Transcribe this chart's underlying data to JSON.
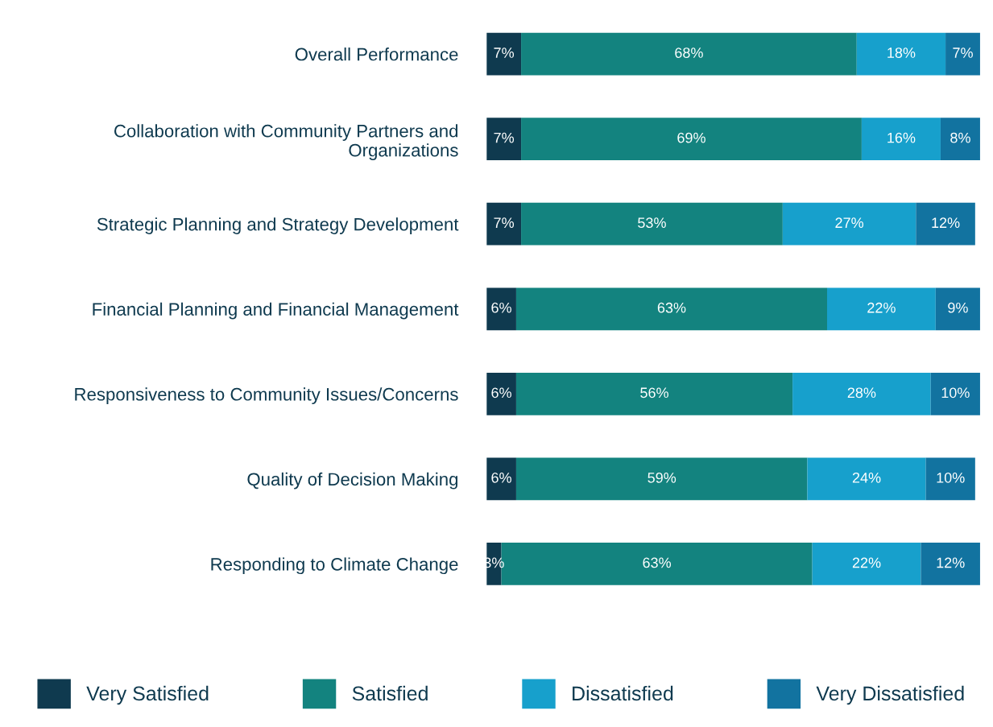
{
  "chart_data": {
    "type": "bar",
    "orientation": "horizontal",
    "stacked": true,
    "categories": [
      "Overall Performance",
      "Collaboration with Community Partners and Organizations",
      "Strategic Planning and Strategy Development",
      "Financial Planning and Financial Management",
      "Responsiveness to Community Issues/Concerns",
      "Quality of Decision Making",
      "Responding to Climate Change"
    ],
    "series": [
      {
        "name": "Very Satisfied",
        "color": "#0f3a4f",
        "values": [
          7,
          7,
          7,
          6,
          6,
          6,
          3
        ],
        "value_labels": [
          "7%",
          "7%",
          "7%",
          "6%",
          "6%",
          "6%",
          "3%"
        ]
      },
      {
        "name": "Satisfied",
        "color": "#13837f",
        "values": [
          68,
          69,
          53,
          63,
          56,
          59,
          63
        ],
        "value_labels": [
          "68%",
          "69%",
          "53%",
          "63%",
          "56%",
          "59%",
          "63%"
        ]
      },
      {
        "name": "Dissatisfied",
        "color": "#17a0cc",
        "values": [
          18,
          16,
          27,
          22,
          28,
          24,
          22
        ],
        "value_labels": [
          "18%",
          "16%",
          "27%",
          "22%",
          "28%",
          "24%",
          "22%"
        ]
      },
      {
        "name": "Very Dissatisfied",
        "color": "#1273a0",
        "values": [
          7,
          8,
          12,
          9,
          10,
          10,
          12
        ],
        "value_labels": [
          "7%",
          "8%",
          "12%",
          "9%",
          "10%",
          "10%",
          "12%"
        ]
      }
    ],
    "legend": "bottom",
    "grid": false
  }
}
